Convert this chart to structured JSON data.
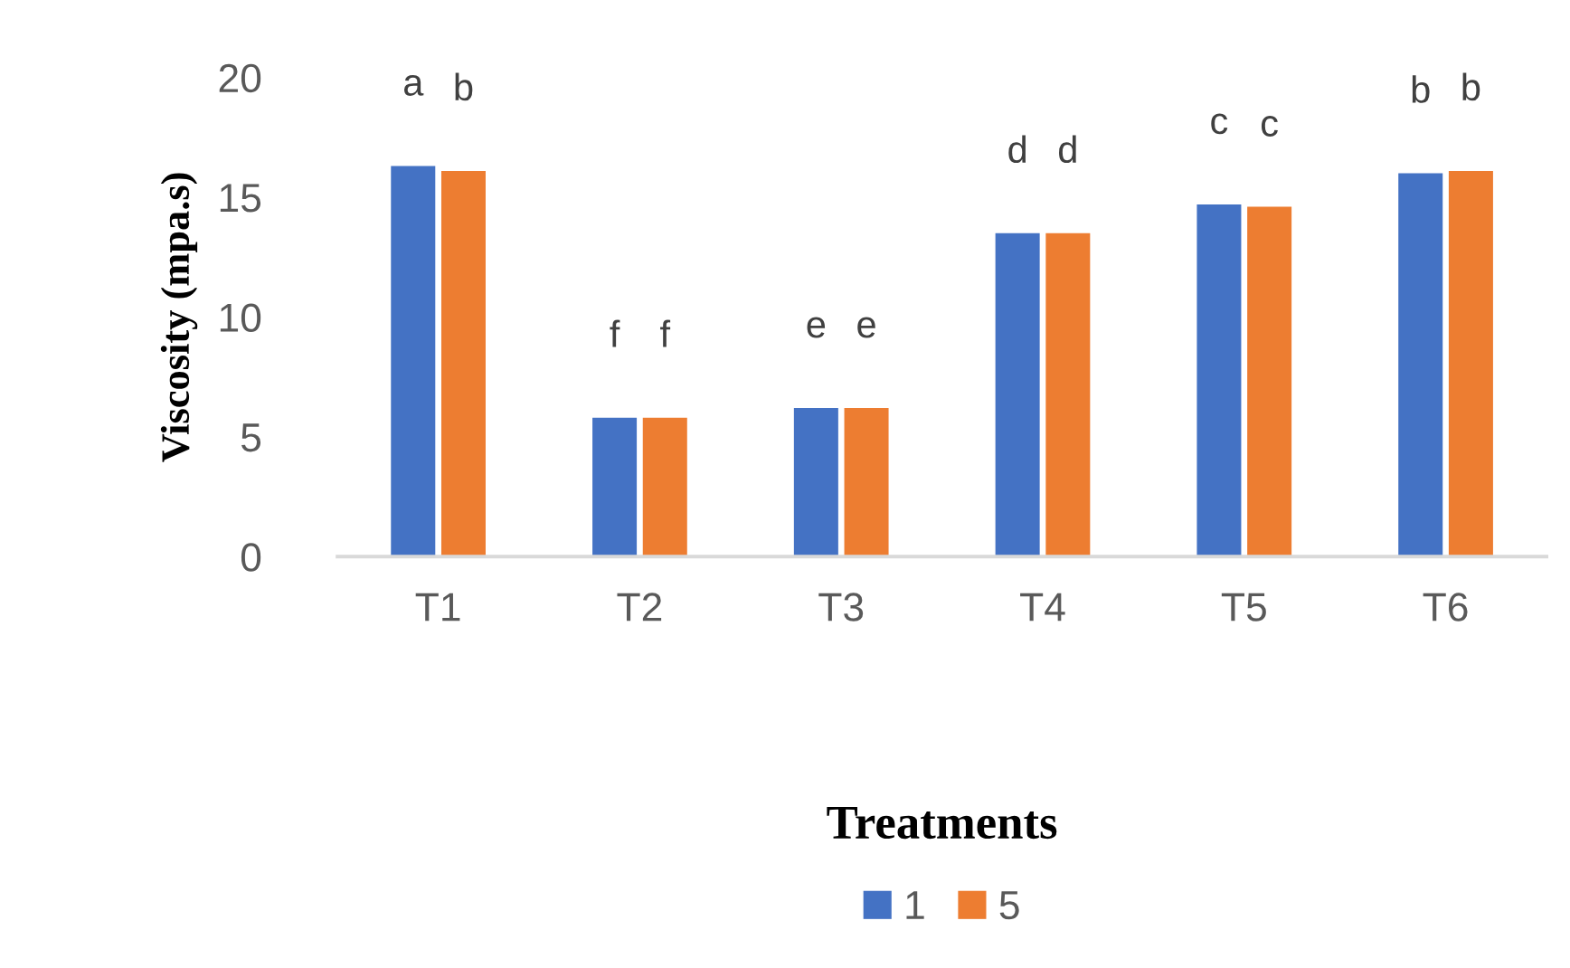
{
  "chart_data": {
    "type": "bar",
    "xlabel": "Treatments",
    "ylabel": "Viscosity (mpa.s)",
    "categories": [
      "T1",
      "T2",
      "T3",
      "T4",
      "T5",
      "T6"
    ],
    "series": [
      {
        "name": "1",
        "color": "#4472c4",
        "values": [
          16.3,
          5.8,
          6.2,
          13.5,
          14.7,
          16.0
        ],
        "value_labels": [
          "a",
          "f",
          "e",
          "d",
          "c",
          "b"
        ]
      },
      {
        "name": "5",
        "color": "#ed7d31",
        "values": [
          16.1,
          5.8,
          6.2,
          13.5,
          14.6,
          16.1
        ],
        "value_labels": [
          "b",
          "f",
          "e",
          "d",
          "c",
          "b"
        ]
      }
    ],
    "ylim": [
      0,
      20
    ],
    "yticks": [
      0,
      5,
      10,
      15,
      20
    ],
    "grid": false,
    "legend": "bottom"
  }
}
